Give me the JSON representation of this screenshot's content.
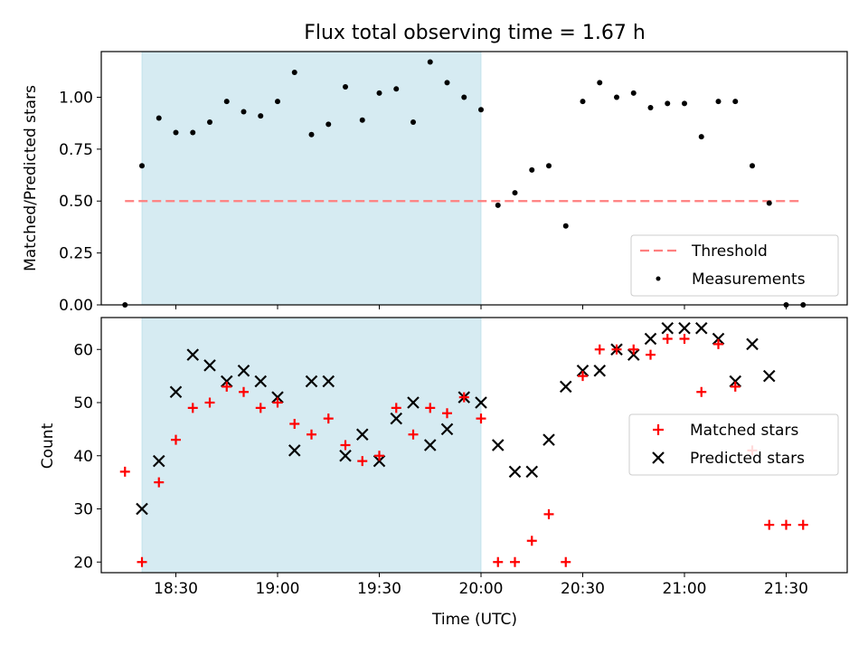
{
  "title": "Flux total observing time = 1.67 h",
  "colors": {
    "shade": "#add8e6",
    "threshold": "#ff7f7f",
    "measurement": "#000000",
    "matched": "#ff0000",
    "predicted": "#000000"
  },
  "chart_data": [
    {
      "type": "scatter",
      "ylabel": "Matched/Predicted stars",
      "ylim": [
        0,
        1.22
      ],
      "yticks": [
        "0.00",
        "0.25",
        "0.50",
        "0.75",
        "1.00"
      ],
      "legend_placement": "lower-right",
      "shaded_span": [
        "18:20",
        "20:00"
      ],
      "threshold": {
        "name": "Threshold",
        "value": 0.5,
        "x_range": [
          "18:15",
          "21:35"
        ]
      },
      "series": [
        {
          "name": "Measurements",
          "x": [
            "18:15",
            "18:20",
            "18:25",
            "18:30",
            "18:35",
            "18:40",
            "18:45",
            "18:50",
            "18:55",
            "19:00",
            "19:05",
            "19:10",
            "19:15",
            "19:20",
            "19:25",
            "19:30",
            "19:35",
            "19:40",
            "19:45",
            "19:50",
            "19:55",
            "20:00",
            "20:05",
            "20:10",
            "20:15",
            "20:20",
            "20:25",
            "20:30",
            "20:35",
            "20:40",
            "20:45",
            "20:50",
            "20:55",
            "21:00",
            "21:05",
            "21:10",
            "21:15",
            "21:20",
            "21:25",
            "21:30",
            "21:35"
          ],
          "values": [
            0.0,
            0.67,
            0.9,
            0.83,
            0.83,
            0.88,
            0.98,
            0.93,
            0.91,
            0.98,
            1.12,
            0.82,
            0.87,
            1.05,
            0.89,
            1.02,
            1.04,
            0.88,
            1.17,
            1.07,
            1.0,
            0.94,
            0.48,
            0.54,
            0.65,
            0.67,
            0.38,
            0.98,
            1.07,
            1.0,
            1.02,
            0.95,
            0.97,
            0.97,
            0.81,
            0.98,
            0.98,
            0.67,
            0.49,
            0.0,
            0.0
          ]
        }
      ]
    },
    {
      "type": "scatter",
      "xlabel": "Time (UTC)",
      "ylabel": "Count",
      "ylim": [
        18,
        66
      ],
      "yticks": [
        "20",
        "30",
        "40",
        "50",
        "60"
      ],
      "xticks": [
        "18:30",
        "19:00",
        "19:30",
        "20:00",
        "20:30",
        "21:00",
        "21:30"
      ],
      "legend_placement": "right",
      "shaded_span": [
        "18:20",
        "20:00"
      ],
      "series": [
        {
          "name": "Matched stars",
          "x": [
            "18:15",
            "18:20",
            "18:25",
            "18:30",
            "18:35",
            "18:40",
            "18:45",
            "18:50",
            "18:55",
            "19:00",
            "19:05",
            "19:10",
            "19:15",
            "19:20",
            "19:25",
            "19:30",
            "19:35",
            "19:40",
            "19:45",
            "19:50",
            "19:55",
            "20:00",
            "20:05",
            "20:10",
            "20:15",
            "20:20",
            "20:25",
            "20:30",
            "20:35",
            "20:40",
            "20:45",
            "20:50",
            "20:55",
            "21:00",
            "21:05",
            "21:10",
            "21:15",
            "21:20",
            "21:25",
            "21:30",
            "21:35"
          ],
          "values": [
            37,
            20,
            35,
            43,
            49,
            50,
            53,
            52,
            49,
            50,
            46,
            44,
            47,
            42,
            39,
            40,
            49,
            44,
            49,
            48,
            51,
            47,
            20,
            20,
            24,
            29,
            20,
            55,
            60,
            60,
            60,
            59,
            62,
            62,
            52,
            61,
            53,
            41,
            27,
            27,
            27
          ]
        },
        {
          "name": "Predicted stars",
          "x": [
            "18:20",
            "18:25",
            "18:30",
            "18:35",
            "18:40",
            "18:45",
            "18:50",
            "18:55",
            "19:00",
            "19:05",
            "19:10",
            "19:15",
            "19:20",
            "19:25",
            "19:30",
            "19:35",
            "19:40",
            "19:45",
            "19:50",
            "19:55",
            "20:00",
            "20:05",
            "20:10",
            "20:15",
            "20:20",
            "20:25",
            "20:30",
            "20:35",
            "20:40",
            "20:45",
            "20:50",
            "20:55",
            "21:00",
            "21:05",
            "21:10",
            "21:15",
            "21:20",
            "21:25"
          ],
          "values": [
            30,
            39,
            52,
            59,
            57,
            54,
            56,
            54,
            51,
            41,
            54,
            54,
            40,
            44,
            39,
            47,
            50,
            42,
            45,
            51,
            50,
            42,
            37,
            37,
            43,
            53,
            56,
            56,
            60,
            59,
            62,
            64,
            64,
            64,
            62,
            54,
            61,
            55
          ]
        }
      ]
    }
  ]
}
